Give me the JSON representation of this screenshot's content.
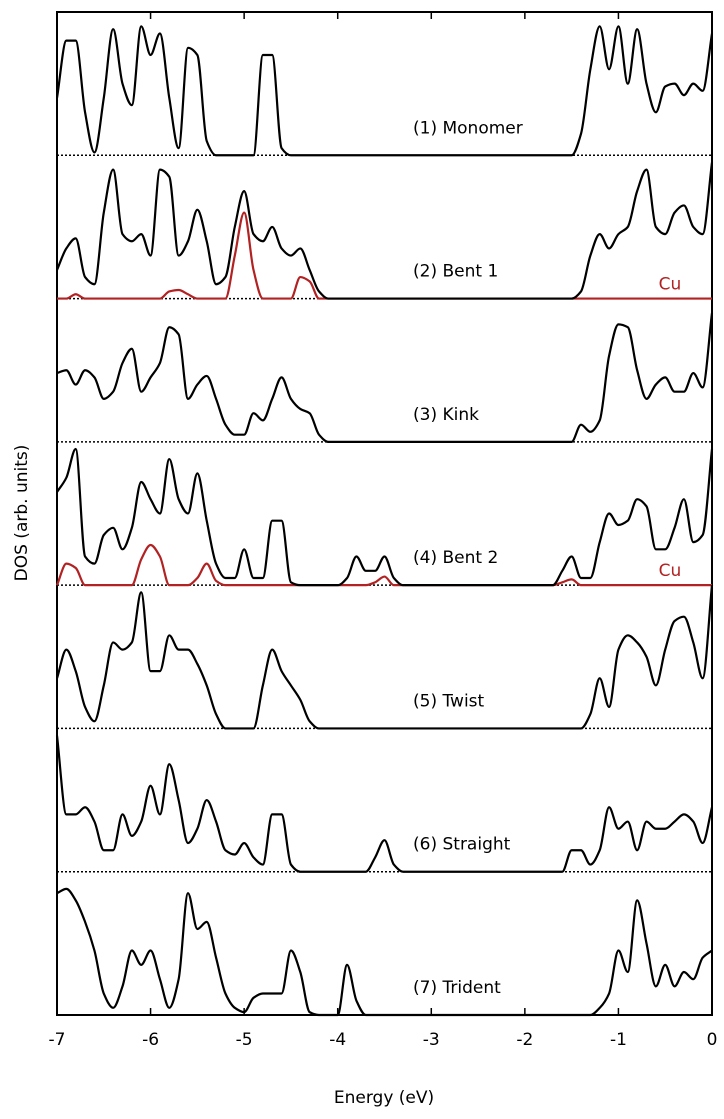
{
  "chart_data": {
    "type": "line",
    "xlabel": "Energy (eV)",
    "ylabel": "DOS (arb. units)",
    "xlim": [
      -7,
      0
    ],
    "ylim": [
      0,
      7
    ],
    "xticks": [
      -7,
      -6,
      -5,
      -4,
      -3,
      -2,
      -1,
      0
    ],
    "x": [
      -7.0,
      -6.9,
      -6.8,
      -6.7,
      -6.6,
      -6.5,
      -6.4,
      -6.3,
      -6.2,
      -6.1,
      -6.0,
      -5.9,
      -5.8,
      -5.7,
      -5.6,
      -5.5,
      -5.4,
      -5.3,
      -5.2,
      -5.1,
      -5.0,
      -4.9,
      -4.8,
      -4.7,
      -4.6,
      -4.5,
      -4.4,
      -4.3,
      -4.2,
      -4.1,
      -4.0,
      -3.9,
      -3.8,
      -3.7,
      -3.6,
      -3.5,
      -3.4,
      -3.3,
      -3.2,
      -3.1,
      -3.0,
      -2.9,
      -2.8,
      -2.7,
      -2.6,
      -2.5,
      -2.4,
      -2.3,
      -2.2,
      -2.1,
      -2.0,
      -1.9,
      -1.8,
      -1.7,
      -1.6,
      -1.5,
      -1.4,
      -1.3,
      -1.2,
      -1.1,
      -1.0,
      -0.9,
      -0.8,
      -0.7,
      -0.6,
      -0.5,
      -0.4,
      -0.3,
      -0.2,
      -0.1,
      0.0
    ],
    "series": [
      {
        "name": "(1) Monomer",
        "color": "#000000",
        "values": [
          0.4,
          0.8,
          0.8,
          0.3,
          0.02,
          0.4,
          0.88,
          0.5,
          0.35,
          0.9,
          0.7,
          0.85,
          0.4,
          0.05,
          0.75,
          0.7,
          0.1,
          0,
          0,
          0,
          0,
          0,
          0.7,
          0.7,
          0.05,
          0,
          0,
          0,
          0,
          0,
          0,
          0,
          0,
          0,
          0,
          0,
          0,
          0,
          0,
          0,
          0,
          0,
          0,
          0,
          0,
          0,
          0,
          0,
          0,
          0,
          0,
          0,
          0,
          0,
          0,
          0,
          0.15,
          0.6,
          0.9,
          0.6,
          0.9,
          0.5,
          0.88,
          0.5,
          0.3,
          0.48,
          0.5,
          0.42,
          0.5,
          0.45,
          0.85
        ]
      },
      {
        "name": "(2) Bent 1",
        "color": "#000000",
        "values": [
          0.2,
          0.35,
          0.42,
          0.15,
          0.1,
          0.6,
          0.9,
          0.45,
          0.4,
          0.45,
          0.3,
          0.9,
          0.85,
          0.3,
          0.4,
          0.62,
          0.4,
          0.1,
          0.15,
          0.5,
          0.75,
          0.45,
          0.4,
          0.5,
          0.35,
          0.3,
          0.35,
          0.2,
          0.05,
          0,
          0,
          0,
          0,
          0,
          0,
          0,
          0,
          0,
          0,
          0,
          0,
          0,
          0,
          0,
          0,
          0,
          0,
          0,
          0,
          0,
          0,
          0,
          0,
          0,
          0,
          0,
          0.05,
          0.3,
          0.45,
          0.35,
          0.45,
          0.5,
          0.75,
          0.9,
          0.5,
          0.45,
          0.6,
          0.65,
          0.5,
          0.45,
          0.95
        ],
        "partial": {
          "name": "Cu",
          "color": "#b22222",
          "values": [
            0,
            0,
            0.03,
            0,
            0,
            0,
            0,
            0,
            0,
            0,
            0,
            0,
            0.05,
            0.06,
            0.03,
            0,
            0,
            0,
            0,
            0.3,
            0.6,
            0.2,
            0,
            0,
            0,
            0,
            0.15,
            0.12,
            0,
            0,
            0,
            0,
            0,
            0,
            0,
            0,
            0,
            0,
            0,
            0,
            0,
            0,
            0,
            0,
            0,
            0,
            0,
            0,
            0,
            0,
            0,
            0,
            0,
            0,
            0,
            0,
            0,
            0,
            0,
            0,
            0,
            0,
            0,
            0,
            0,
            0,
            0,
            0,
            0,
            0,
            0
          ]
        }
      },
      {
        "name": "(3) Kink",
        "color": "#000000",
        "values": [
          0.48,
          0.5,
          0.4,
          0.5,
          0.45,
          0.3,
          0.35,
          0.55,
          0.65,
          0.35,
          0.45,
          0.55,
          0.8,
          0.75,
          0.3,
          0.4,
          0.46,
          0.3,
          0.12,
          0.05,
          0.05,
          0.2,
          0.15,
          0.3,
          0.45,
          0.3,
          0.23,
          0.2,
          0.05,
          0,
          0,
          0,
          0,
          0,
          0,
          0,
          0,
          0,
          0,
          0,
          0,
          0,
          0,
          0,
          0,
          0,
          0,
          0,
          0,
          0,
          0,
          0,
          0,
          0,
          0,
          0,
          0.12,
          0.07,
          0.15,
          0.6,
          0.82,
          0.8,
          0.5,
          0.3,
          0.4,
          0.45,
          0.35,
          0.35,
          0.48,
          0.38,
          0.9
        ]
      },
      {
        "name": "(4) Bent 2",
        "color": "#000000",
        "values": [
          0.65,
          0.75,
          0.95,
          0.2,
          0.15,
          0.35,
          0.4,
          0.25,
          0.4,
          0.72,
          0.6,
          0.5,
          0.88,
          0.6,
          0.5,
          0.78,
          0.45,
          0.15,
          0.05,
          0.05,
          0.25,
          0.05,
          0.05,
          0.45,
          0.45,
          0.02,
          0,
          0,
          0,
          0,
          0,
          0.05,
          0.2,
          0.1,
          0.1,
          0.2,
          0.05,
          0,
          0,
          0,
          0,
          0,
          0,
          0,
          0,
          0,
          0,
          0,
          0,
          0,
          0,
          0,
          0,
          0,
          0.1,
          0.2,
          0.05,
          0.05,
          0.3,
          0.5,
          0.42,
          0.45,
          0.6,
          0.55,
          0.25,
          0.25,
          0.4,
          0.6,
          0.3,
          0.35,
          0.95
        ],
        "partial": {
          "name": "Cu",
          "color": "#b22222",
          "values": [
            0,
            0.15,
            0.12,
            0,
            0,
            0,
            0,
            0,
            0,
            0.18,
            0.28,
            0.2,
            0,
            0,
            0,
            0.05,
            0.15,
            0.03,
            0,
            0,
            0,
            0,
            0,
            0,
            0,
            0,
            0,
            0,
            0,
            0,
            0,
            0,
            0,
            0,
            0.02,
            0.06,
            0,
            0,
            0,
            0,
            0,
            0,
            0,
            0,
            0,
            0,
            0,
            0,
            0,
            0,
            0,
            0,
            0,
            0,
            0.02,
            0.04,
            0,
            0,
            0,
            0,
            0,
            0,
            0,
            0,
            0,
            0,
            0,
            0,
            0,
            0,
            0
          ]
        }
      },
      {
        "name": "(5) Twist",
        "color": "#000000",
        "values": [
          0.35,
          0.55,
          0.4,
          0.15,
          0.05,
          0.3,
          0.6,
          0.55,
          0.6,
          0.95,
          0.4,
          0.4,
          0.65,
          0.55,
          0.55,
          0.45,
          0.3,
          0.1,
          0,
          0,
          0,
          0,
          0.3,
          0.55,
          0.4,
          0.3,
          0.2,
          0.05,
          0,
          0,
          0,
          0,
          0,
          0,
          0,
          0,
          0,
          0,
          0,
          0,
          0,
          0,
          0,
          0,
          0,
          0,
          0,
          0,
          0,
          0,
          0,
          0,
          0,
          0,
          0,
          0,
          0,
          0.1,
          0.35,
          0.15,
          0.55,
          0.65,
          0.6,
          0.5,
          0.3,
          0.55,
          0.75,
          0.78,
          0.6,
          0.35,
          1.0
        ]
      },
      {
        "name": "(6) Straight",
        "color": "#000000",
        "values": [
          0.95,
          0.4,
          0.4,
          0.45,
          0.35,
          0.15,
          0.15,
          0.4,
          0.25,
          0.35,
          0.6,
          0.4,
          0.75,
          0.5,
          0.2,
          0.3,
          0.5,
          0.35,
          0.15,
          0.12,
          0.2,
          0.1,
          0.05,
          0.4,
          0.4,
          0.05,
          0,
          0,
          0,
          0,
          0,
          0,
          0,
          0,
          0.1,
          0.22,
          0.05,
          0,
          0,
          0,
          0,
          0,
          0,
          0,
          0,
          0,
          0,
          0,
          0,
          0,
          0,
          0,
          0,
          0,
          0,
          0.15,
          0.15,
          0.05,
          0.15,
          0.45,
          0.3,
          0.35,
          0.15,
          0.35,
          0.3,
          0.3,
          0.35,
          0.4,
          0.35,
          0.2,
          0.45
        ]
      },
      {
        "name": "(7) Trident",
        "color": "#000000",
        "values": [
          0.85,
          0.88,
          0.8,
          0.65,
          0.45,
          0.15,
          0.05,
          0.2,
          0.45,
          0.35,
          0.45,
          0.25,
          0.05,
          0.25,
          0.85,
          0.6,
          0.65,
          0.4,
          0.15,
          0.05,
          0.02,
          0.12,
          0.15,
          0.15,
          0.15,
          0.45,
          0.3,
          0.02,
          0,
          0,
          0,
          0.35,
          0.1,
          0,
          0,
          0,
          0,
          0,
          0,
          0,
          0,
          0,
          0,
          0,
          0,
          0,
          0,
          0,
          0,
          0,
          0,
          0,
          0,
          0,
          0,
          0,
          0,
          0,
          0.05,
          0.15,
          0.45,
          0.3,
          0.8,
          0.5,
          0.2,
          0.35,
          0.2,
          0.3,
          0.25,
          0.4,
          0.45
        ]
      }
    ]
  }
}
